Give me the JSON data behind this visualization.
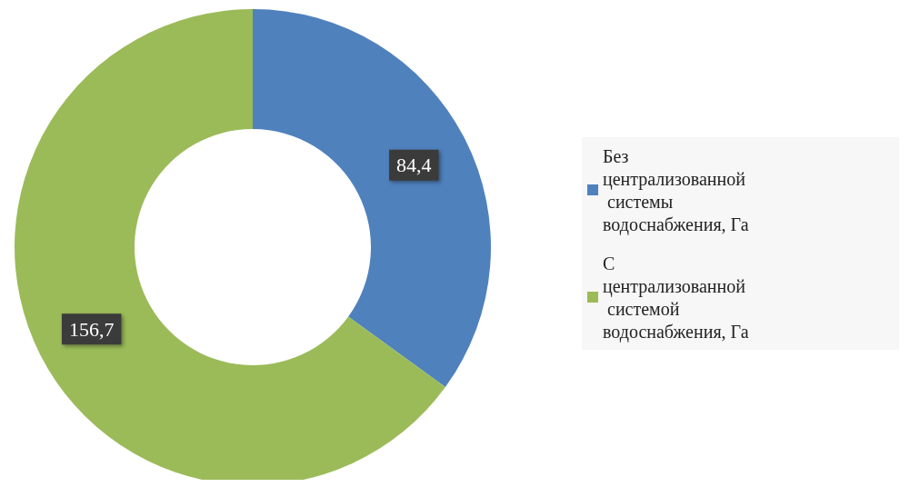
{
  "chart_data": {
    "type": "donut",
    "categories": [
      "Без централизованной системы водоснабжения, Га",
      "С централизованной системой водоснабжения, Га"
    ],
    "values": [
      84.4,
      156.7
    ],
    "colors": [
      "#4f81bd",
      "#9bbb59"
    ],
    "value_labels": [
      "84,4",
      "156,7"
    ],
    "legend": "right"
  }
}
